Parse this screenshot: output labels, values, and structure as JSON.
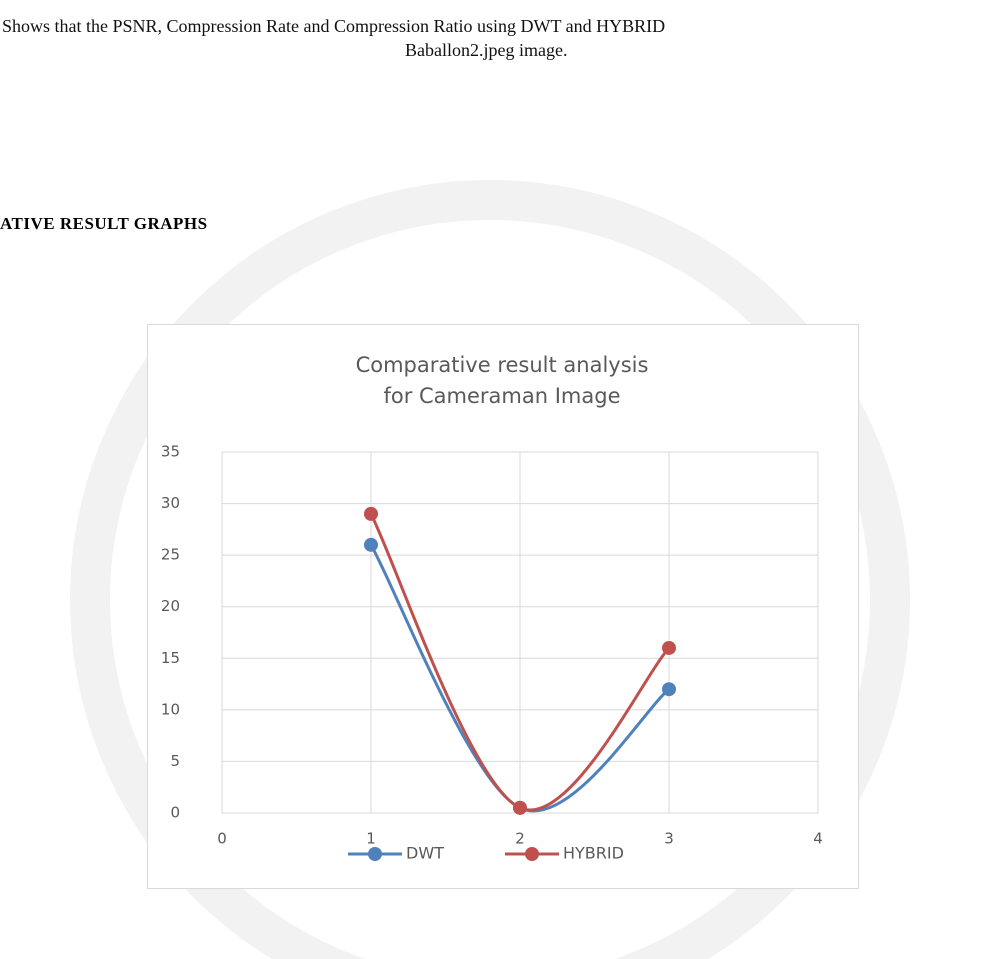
{
  "caption": [
    "Shows that the PSNR, Compression Rate and Compression Ratio using DWT and HYBRID",
    "Baballon2.jpeg image."
  ],
  "heading": "ATIVE RESULT GRAPHS",
  "chart_data": {
    "type": "scatter",
    "title": "Comparative result analysis for Cameraman Image",
    "x": [
      1,
      2,
      3
    ],
    "series": [
      {
        "name": "DWT",
        "color": "#4f81bd",
        "values": [
          26,
          0.5,
          12
        ]
      },
      {
        "name": "HYBRID",
        "color": "#c0504d",
        "values": [
          29,
          0.5,
          16
        ]
      }
    ],
    "xlim": [
      0,
      4
    ],
    "xticks": [
      0,
      1,
      2,
      3,
      4
    ],
    "ylim": [
      0,
      35
    ],
    "yticks": [
      0,
      5,
      10,
      15,
      20,
      25,
      30,
      35
    ],
    "grid": true,
    "smooth": true,
    "legend": "bottom"
  }
}
